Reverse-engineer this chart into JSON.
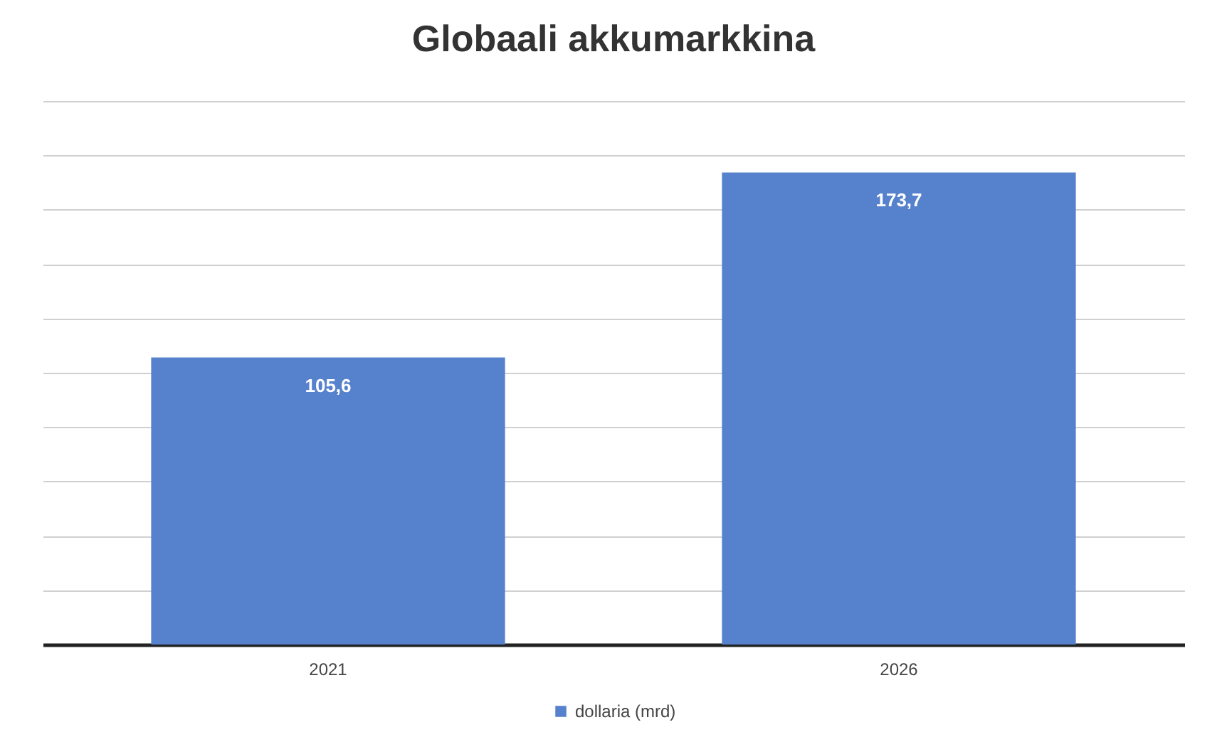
{
  "chart_data": {
    "type": "bar",
    "title": "Globaali akkumarkkina",
    "categories": [
      "2021",
      "2026"
    ],
    "series": [
      {
        "name": "dollaria (mrd)",
        "color": "#5681cc",
        "values": [
          105.6,
          173.7
        ],
        "value_labels": [
          "105,6",
          "173,7"
        ]
      }
    ],
    "ylim": [
      0,
      200
    ],
    "yticks": [
      {
        "value": 0,
        "label": null
      },
      {
        "value": 20,
        "label": null
      },
      {
        "value": 40,
        "label": null
      },
      {
        "value": 60,
        "label": null
      },
      {
        "value": 80,
        "label": null
      },
      {
        "value": 100,
        "label": null
      },
      {
        "value": 120,
        "label": null
      },
      {
        "value": 140,
        "label": null
      },
      {
        "value": 160,
        "label": null
      },
      {
        "value": 180,
        "label": null
      },
      {
        "value": 200,
        "label": null
      }
    ],
    "grid": "y",
    "legend": "bottom",
    "tick_labels": "x"
  }
}
